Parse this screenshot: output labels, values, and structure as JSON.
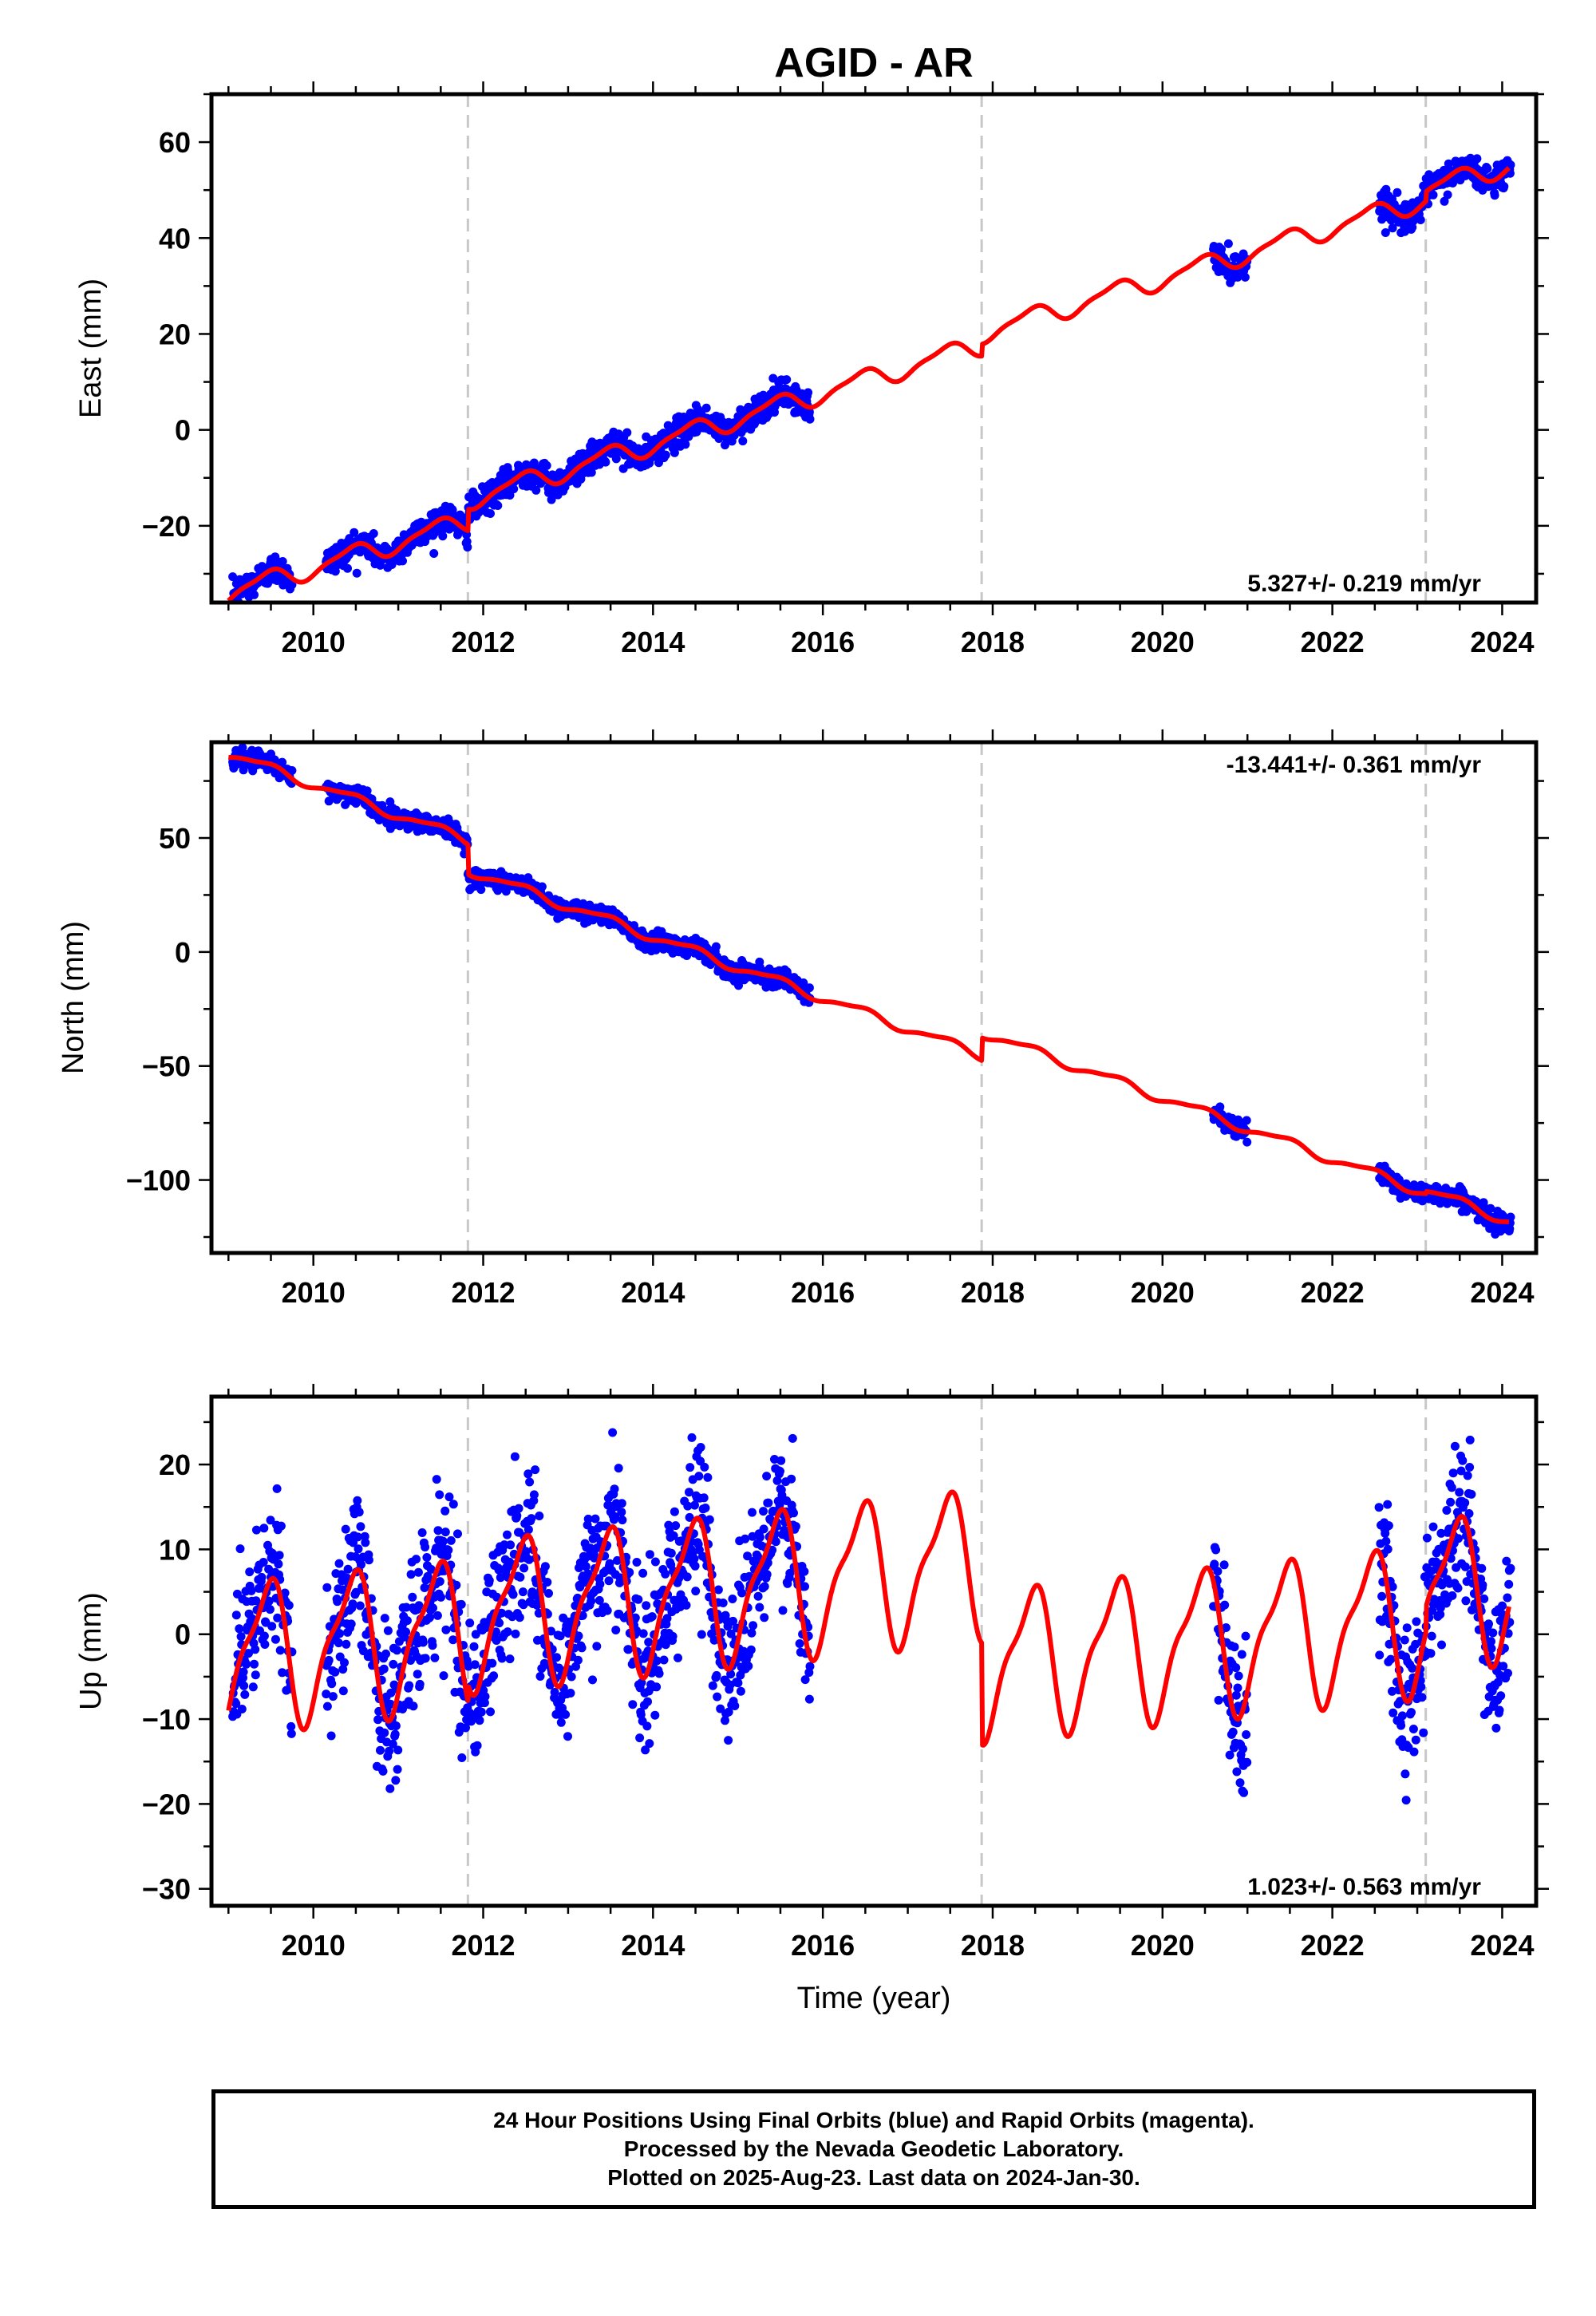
{
  "title": "AGID - AR",
  "colors": {
    "data": "#0000ff",
    "model": "#ff0000",
    "step": "#c8c8c8"
  },
  "chart_data": [
    {
      "type": "scatter",
      "ylabel": "East (mm)",
      "xlabel": "",
      "xlim": [
        2008.8,
        2024.4
      ],
      "ylim": [
        -36,
        70
      ],
      "xticks": [
        2010,
        2012,
        2014,
        2016,
        2018,
        2020,
        2022,
        2024
      ],
      "yticks": [
        -20,
        0,
        20,
        40,
        60
      ],
      "step_epochs": [
        2011.82,
        2017.87,
        2023.1
      ],
      "rate_label": "5.327+/- 0.219 mm/yr",
      "rate_position": "bottom-right",
      "model": {
        "name": "model",
        "trend": {
          "epoch": 2009.0,
          "value": -34.0,
          "rate": 5.327
        },
        "annual_amplitude": 2.0,
        "semiannual_amplitude": 0.6,
        "offsets": [
          [
            2011.82,
            4.5
          ],
          [
            2017.87,
            2.5
          ],
          [
            2023.1,
            2.0
          ]
        ]
      },
      "data_segments": [
        [
          2009.05,
          2009.75
        ],
        [
          2010.15,
          2015.85
        ],
        [
          2020.6,
          2021.0
        ],
        [
          2022.55,
          2024.1
        ]
      ],
      "scatter_sd": 1.5
    },
    {
      "type": "scatter",
      "ylabel": "North (mm)",
      "xlabel": "",
      "xlim": [
        2008.8,
        2024.4
      ],
      "ylim": [
        -132,
        92
      ],
      "xticks": [
        2010,
        2012,
        2014,
        2016,
        2018,
        2020,
        2022,
        2024
      ],
      "yticks": [
        -100,
        -50,
        0,
        50
      ],
      "step_epochs": [
        2011.82,
        2017.87,
        2023.1
      ],
      "rate_label": "-13.441+/- 0.361 mm/yr",
      "rate_position": "top-right",
      "model": {
        "name": "model",
        "trend": {
          "epoch": 2009.0,
          "value": 87.0,
          "rate": -13.441
        },
        "annual_amplitude": 2.0,
        "semiannual_amplitude": 0.6,
        "offsets": [
          [
            2011.82,
            -13.0
          ],
          [
            2017.87,
            10.0
          ],
          [
            2023.1,
            1.0
          ]
        ]
      },
      "data_segments": [
        [
          2009.05,
          2009.75
        ],
        [
          2010.15,
          2015.85
        ],
        [
          2020.6,
          2021.0
        ],
        [
          2022.55,
          2024.1
        ]
      ],
      "scatter_sd": 2.0
    },
    {
      "type": "scatter",
      "ylabel": "Up (mm)",
      "xlabel": "Time (year)",
      "xlim": [
        2008.8,
        2024.4
      ],
      "ylim": [
        -32,
        28
      ],
      "xticks": [
        2010,
        2012,
        2014,
        2016,
        2018,
        2020,
        2022,
        2024
      ],
      "yticks": [
        -30,
        -20,
        -10,
        0,
        10,
        20
      ],
      "step_epochs": [
        2011.82,
        2017.87,
        2023.1
      ],
      "rate_label": "1.023+/- 0.563 mm/yr",
      "rate_position": "bottom-right",
      "model": {
        "name": "model",
        "trend": {
          "epoch": 2009.0,
          "value": -2.5,
          "rate": 1.023
        },
        "annual_amplitude": 8.0,
        "semiannual_amplitude": 2.5,
        "offsets": [
          [
            2011.82,
            2.0
          ],
          [
            2017.87,
            -12.0
          ],
          [
            2023.1,
            3.0
          ]
        ]
      },
      "data_segments": [
        [
          2009.05,
          2009.75
        ],
        [
          2010.15,
          2015.85
        ],
        [
          2020.6,
          2021.0
        ],
        [
          2022.55,
          2024.1
        ]
      ],
      "scatter_sd": 4.5
    }
  ],
  "footer": {
    "line1": "24 Hour Positions Using Final Orbits (blue) and Rapid Orbits (magenta).",
    "line2": "Processed by the Nevada Geodetic Laboratory.",
    "line3": "Plotted on 2025-Aug-23. Last data on 2024-Jan-30."
  }
}
